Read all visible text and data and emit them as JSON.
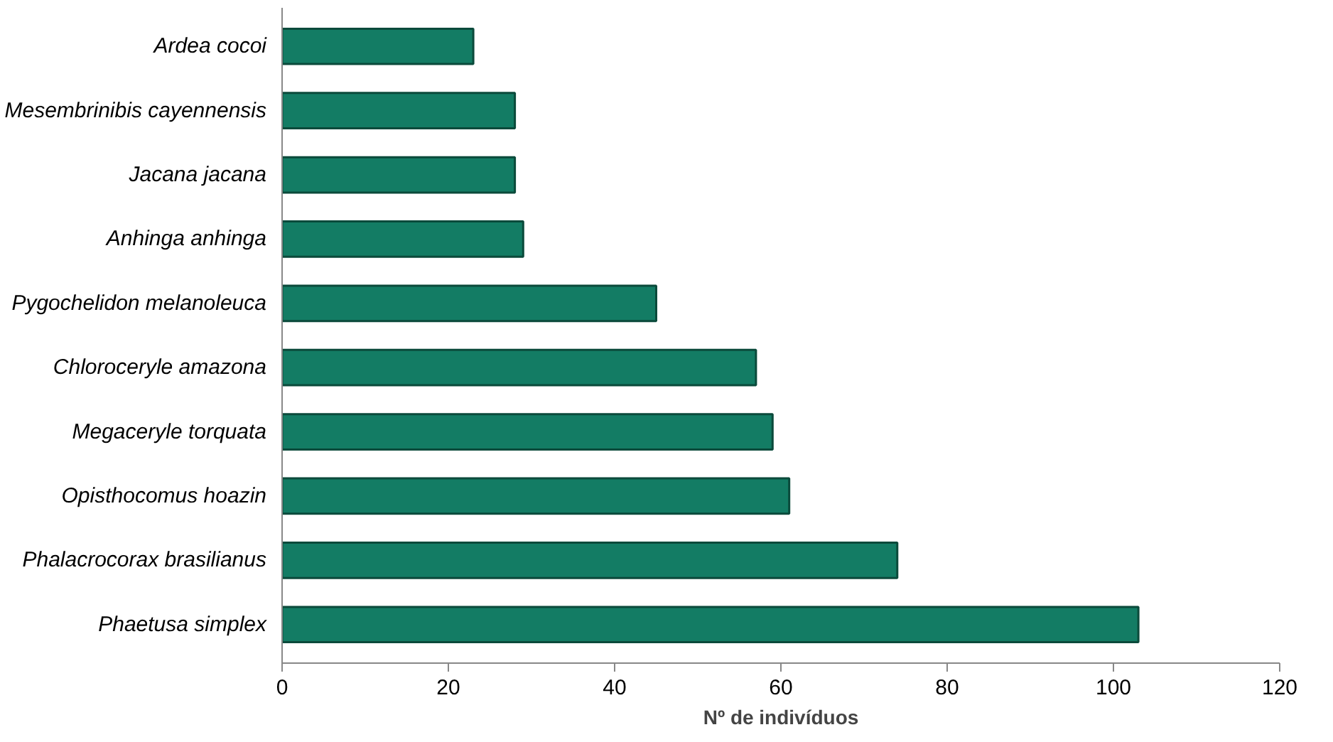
{
  "chart_data": {
    "type": "bar",
    "orientation": "horizontal",
    "xlabel": "Nº de indivíduos",
    "categories": [
      "Ardea cocoi",
      "Mesembrinibis cayennensis",
      "Jacana jacana",
      "Anhinga anhinga",
      "Pygochelidon melanoleuca",
      "Chloroceryle amazona",
      "Megaceryle torquata",
      "Opisthocomus hoazin",
      "Phalacrocorax brasilianus",
      "Phaetusa simplex"
    ],
    "values": [
      23,
      28,
      28,
      29,
      45,
      57,
      59,
      61,
      74,
      103
    ],
    "color": "#137c64",
    "xlim": [
      0,
      120
    ],
    "xticks": [
      0,
      20,
      40,
      60,
      80,
      100,
      120
    ],
    "grid": false
  }
}
